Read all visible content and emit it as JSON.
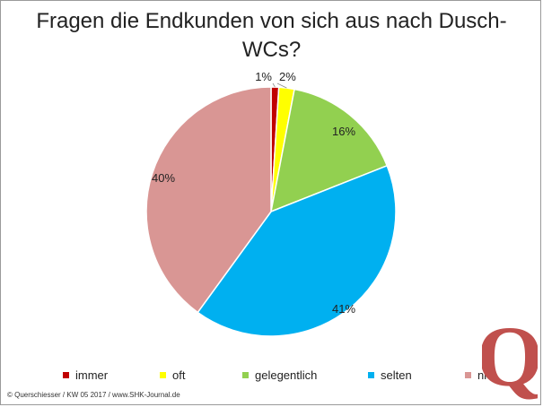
{
  "title": "Fragen die Endkunden von sich aus nach Dusch-WCs?",
  "title_lines": [
    "Fragen die Endkunden von sich aus nach Dusch-",
    "WCs?"
  ],
  "chart_data": {
    "type": "pie",
    "title": "Fragen die Endkunden von sich aus nach Dusch-WCs?",
    "slices": [
      {
        "label": "immer",
        "value": 1,
        "display": "1%",
        "color": "#c00000"
      },
      {
        "label": "oft",
        "value": 2,
        "display": "2%",
        "color": "#ffff00"
      },
      {
        "label": "gelegentlich",
        "value": 16,
        "display": "16%",
        "color": "#92d050"
      },
      {
        "label": "selten",
        "value": 41,
        "display": "41%",
        "color": "#00b0f0"
      },
      {
        "label": "nie",
        "value": 40,
        "display": "40%",
        "color": "#d99694"
      }
    ],
    "legend_position": "bottom"
  },
  "footer": "© Querschiesser / KW 05 2017 / www.SHK-Journal.de",
  "logo": {
    "name": "querschiesser-q-logo",
    "letter": "Q",
    "color": "#c0504d"
  }
}
